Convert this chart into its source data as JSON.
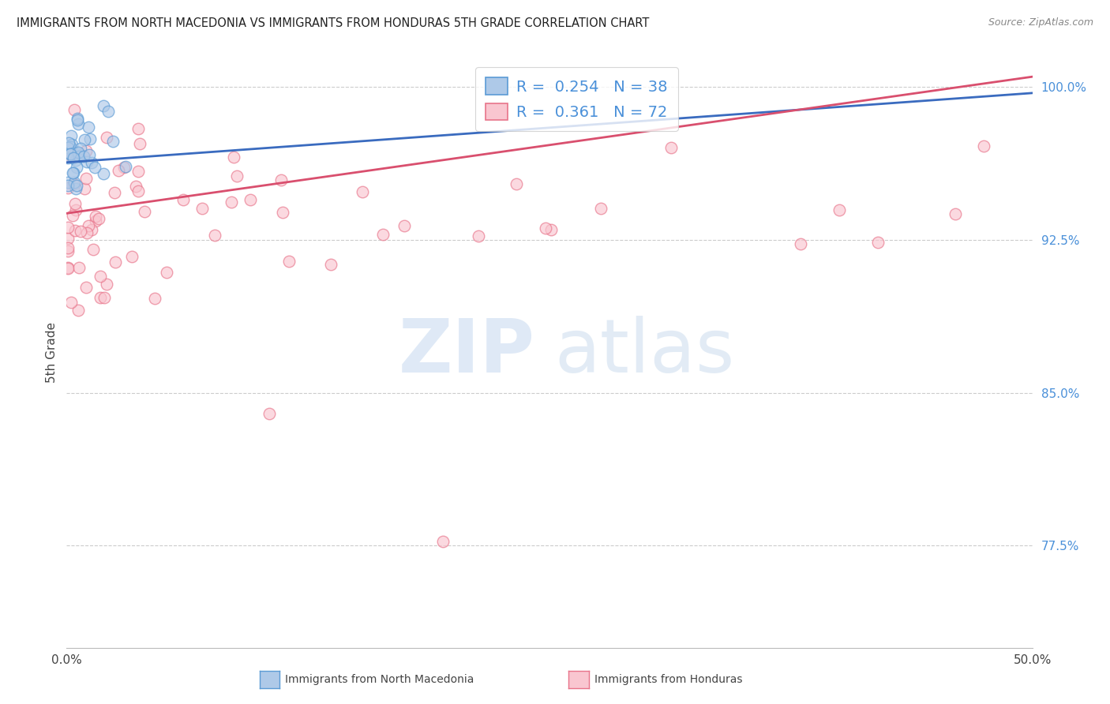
{
  "title": "IMMIGRANTS FROM NORTH MACEDONIA VS IMMIGRANTS FROM HONDURAS 5TH GRADE CORRELATION CHART",
  "source_text": "Source: ZipAtlas.com",
  "ylabel_label": "5th Grade",
  "y_tick_labels": [
    "100.0%",
    "92.5%",
    "85.0%",
    "77.5%"
  ],
  "y_tick_values": [
    1.0,
    0.925,
    0.85,
    0.775
  ],
  "x_range": [
    0.0,
    0.5
  ],
  "y_range": [
    0.725,
    1.015
  ],
  "legend_blue_R": "0.254",
  "legend_blue_N": "38",
  "legend_pink_R": "0.361",
  "legend_pink_N": "72",
  "blue_fill_color": "#aec9e8",
  "blue_edge_color": "#5b9bd5",
  "pink_fill_color": "#f9c6d0",
  "pink_edge_color": "#e8748a",
  "blue_line_color": "#3a6bbf",
  "pink_line_color": "#d94f6e",
  "blue_trendline_y0": 0.963,
  "blue_trendline_y1": 0.997,
  "pink_trendline_y0": 0.938,
  "pink_trendline_y1": 1.005,
  "watermark_zip_color": "#c5d8ef",
  "watermark_atlas_color": "#b8cfe8"
}
